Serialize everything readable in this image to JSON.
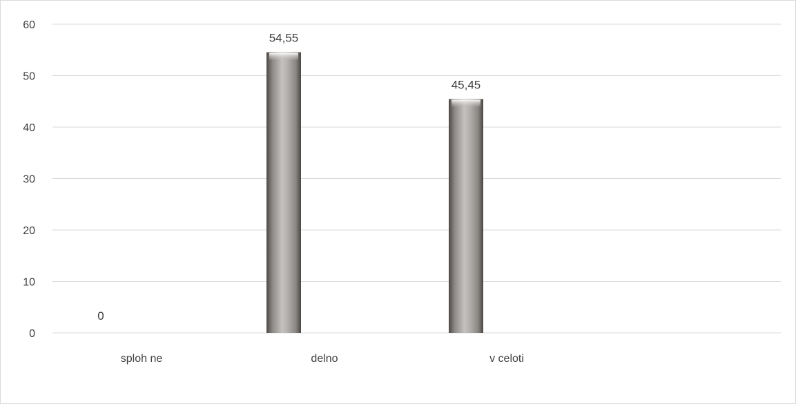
{
  "chart_data": {
    "type": "bar",
    "categories": [
      "sploh ne",
      "delno",
      "v celoti"
    ],
    "values": [
      0,
      54.55,
      45.45
    ],
    "data_labels": [
      "0",
      "54,55",
      "45,45"
    ],
    "title": "",
    "xlabel": "",
    "ylabel": "",
    "ylim": [
      0,
      60
    ],
    "yticks": [
      0,
      10,
      20,
      30,
      40,
      50,
      60
    ],
    "grid": true,
    "legend": "none",
    "colors": {
      "bar_light": "#c9c6c3",
      "bar_mid": "#a8a4a0",
      "bar_dark": "#5e5a57",
      "gridline": "#d9d9d9",
      "text": "#404040"
    }
  }
}
